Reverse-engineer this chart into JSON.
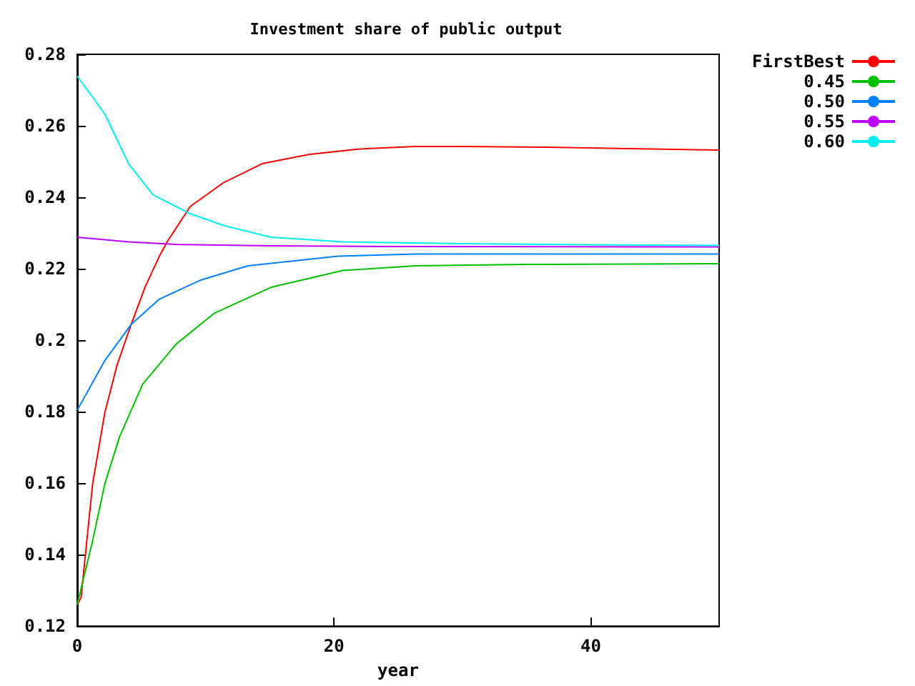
{
  "chart_data": {
    "type": "line",
    "title": "Investment share of public output",
    "xlabel": "year",
    "xlim": [
      0,
      50
    ],
    "xticks": [
      0,
      20,
      40
    ],
    "ylim": [
      0.12,
      0.28
    ],
    "yticks": [
      0.12,
      0.14,
      0.16,
      0.18,
      0.2,
      0.22,
      0.24,
      0.26,
      0.28
    ],
    "grid": false,
    "legend": "top right",
    "marker": "none",
    "line_style": "solid",
    "series": [
      {
        "name": "FirstBest",
        "color": "#ff0000",
        "x": [
          0,
          0.3,
          1.2,
          2.15,
          3.1,
          4.2,
          5.3,
          6.4,
          7,
          8.8,
          11.4,
          14.4,
          18.1,
          22,
          26.3,
          30,
          36.6,
          43,
          50
        ],
        "values": [
          0.126,
          0.128,
          0.1598,
          0.1797,
          0.193,
          0.2044,
          0.215,
          0.2235,
          0.2275,
          0.2374,
          0.2441,
          0.2494,
          0.252,
          0.2535,
          0.2542,
          0.2542,
          0.254,
          0.2536,
          0.2532
        ]
      },
      {
        "name": "0.45",
        "color": "#00c000",
        "x": [
          0,
          1.2,
          2.15,
          3.3,
          5.1,
          7.7,
          10.7,
          15.1,
          20.7,
          26.3,
          35,
          50
        ],
        "values": [
          0.126,
          0.1439,
          0.1598,
          0.173,
          0.1877,
          0.1989,
          0.2076,
          0.2148,
          0.2195,
          0.2208,
          0.2212,
          0.2214
        ]
      },
      {
        "name": "0.50",
        "color": "#0080ff",
        "x": [
          0,
          2.15,
          4.2,
          6.4,
          9.6,
          13.3,
          20.3,
          26.3,
          35,
          50
        ],
        "values": [
          0.1804,
          0.1943,
          0.2044,
          0.2115,
          0.2168,
          0.2208,
          0.2235,
          0.2241,
          0.2241,
          0.2241
        ]
      },
      {
        "name": "0.55",
        "color": "#c000ff",
        "x": [
          0,
          4,
          7.7,
          15,
          25,
          50
        ],
        "values": [
          0.2288,
          0.2275,
          0.2268,
          0.2264,
          0.2262,
          0.2261
        ]
      },
      {
        "name": "0.60",
        "color": "#00eeee",
        "x": [
          0,
          2.15,
          4,
          5.9,
          8.8,
          11.4,
          15.1,
          20.7,
          30,
          40,
          50
        ],
        "values": [
          0.2739,
          0.2633,
          0.2494,
          0.2407,
          0.2354,
          0.2321,
          0.2288,
          0.2275,
          0.227,
          0.2267,
          0.2265
        ]
      }
    ]
  }
}
